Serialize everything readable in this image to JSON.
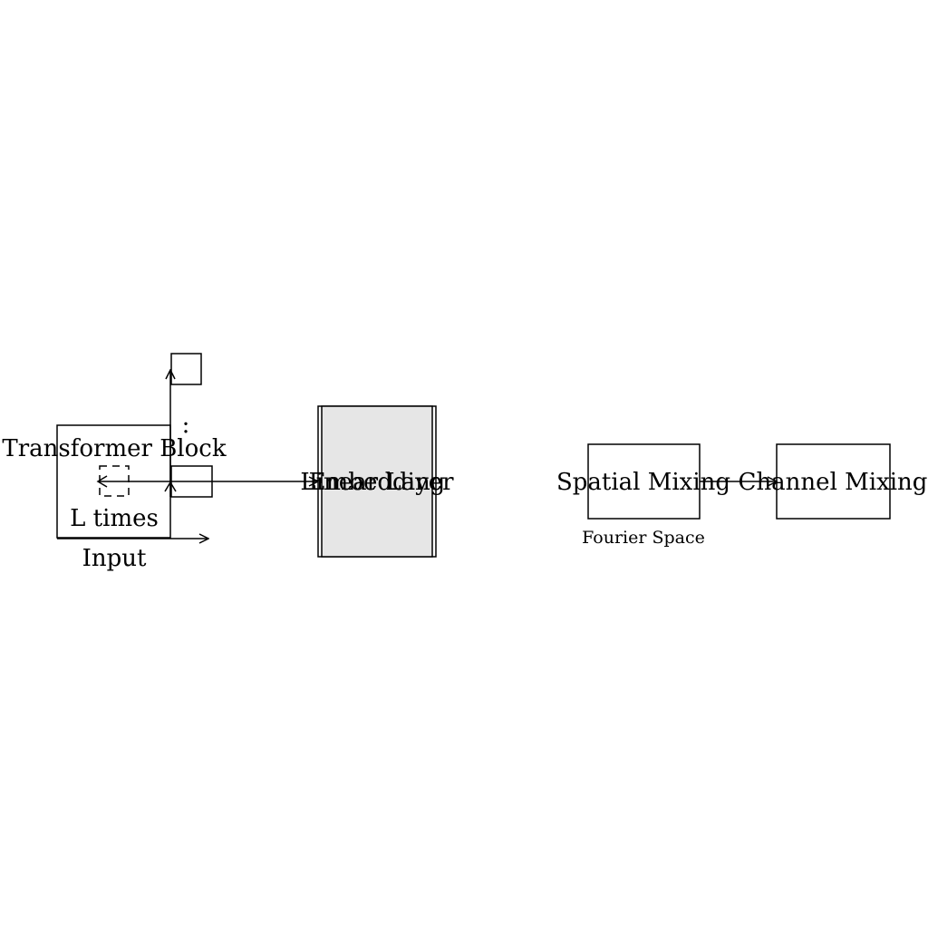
{
  "labels": {
    "transformer_block": "Transformer Block",
    "l_times": "L times",
    "input": "Input",
    "dots": ":",
    "linear_layer": "Linear Layer",
    "embedding": "Embedding",
    "spatial_mixing": "Spatial Mixing",
    "channel_mixing": "Channel Mixing",
    "fourier_space": "Fourier Space"
  },
  "colors": {
    "stroke": "#000000",
    "stack_fill": "#e6e6e6",
    "background": "#ffffff"
  }
}
